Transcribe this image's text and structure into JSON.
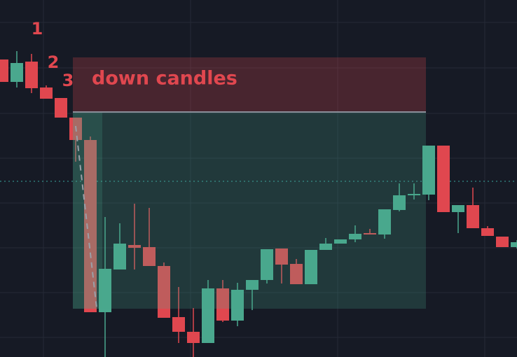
{
  "chart_data": {
    "type": "candlestick",
    "annotations": [
      "1",
      "2",
      "3",
      "down candles"
    ],
    "open": [
      425,
      393,
      422,
      385,
      370,
      342,
      310,
      64,
      125,
      160,
      157,
      130,
      57,
      36,
      20,
      98,
      52,
      96,
      110,
      155,
      133,
      104,
      153,
      162,
      168,
      177,
      175,
      210,
      231,
      232,
      302,
      207,
      217,
      184,
      172,
      157
    ],
    "high": [
      425,
      437,
      433,
      388,
      370,
      342,
      315,
      200,
      191,
      219,
      213,
      135,
      100,
      70,
      110,
      110,
      106,
      110,
      154,
      155,
      140,
      153,
      170,
      168,
      188,
      183,
      211,
      248,
      248,
      302,
      302,
      217,
      242,
      187,
      172,
      167
    ],
    "low": [
      393,
      385,
      377,
      369,
      342,
      279,
      64,
      0,
      125,
      125,
      130,
      56,
      20,
      0,
      20,
      50,
      44,
      67,
      105,
      105,
      104,
      104,
      153,
      162,
      164,
      175,
      169,
      208,
      225,
      224,
      207,
      177,
      184,
      173,
      157,
      155
    ],
    "close": [
      393,
      420,
      384,
      369,
      342,
      310,
      64,
      126,
      162,
      156,
      130,
      56,
      36,
      20,
      98,
      52,
      96,
      110,
      154,
      132,
      104,
      153,
      162,
      168,
      176,
      175,
      211,
      231,
      233,
      302,
      207,
      217,
      184,
      173,
      157,
      164
    ],
    "up_color": "#4aa88e",
    "down_color": "#e0474f",
    "ylim": [
      0,
      510
    ]
  }
}
